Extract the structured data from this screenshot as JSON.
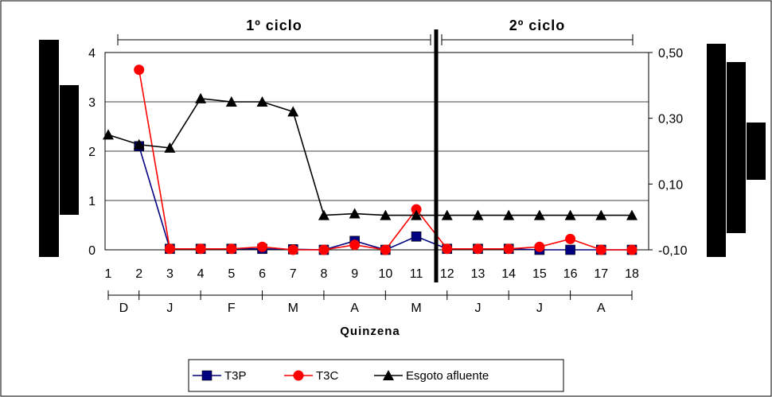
{
  "chart_data": {
    "type": "line",
    "xlabel": "Quinzena",
    "categories": [
      "1",
      "2",
      "3",
      "4",
      "5",
      "6",
      "7",
      "8",
      "9",
      "10",
      "11",
      "12",
      "13",
      "14",
      "15",
      "16",
      "17",
      "18"
    ],
    "y_left": {
      "ticks": [
        "0",
        "1",
        "2",
        "3",
        "4"
      ],
      "range": [
        0,
        4
      ]
    },
    "y_right": {
      "ticks": [
        "-0,10",
        "0,10",
        "0,30",
        "0,50"
      ],
      "range": [
        -0.1,
        0.5
      ]
    },
    "months": [
      {
        "label": "D",
        "from": 1,
        "to": 2
      },
      {
        "label": "J",
        "from": 2,
        "to": 4
      },
      {
        "label": "F",
        "from": 4,
        "to": 6
      },
      {
        "label": "M",
        "from": 6,
        "to": 8
      },
      {
        "label": "A",
        "from": 8,
        "to": 10
      },
      {
        "label": "M",
        "from": 10,
        "to": 12
      },
      {
        "label": "J",
        "from": 12,
        "to": 14
      },
      {
        "label": "J",
        "from": 14,
        "to": 16
      },
      {
        "label": "A",
        "from": 16,
        "to": 18
      }
    ],
    "cycles": [
      {
        "label": "1º ciclo",
        "from": 1,
        "to": 11
      },
      {
        "label": "2º ciclo",
        "from": 12,
        "to": 18
      }
    ],
    "series": [
      {
        "name": "T3P",
        "axis": "left",
        "color": "#000080",
        "marker": "square",
        "points": [
          [
            2,
            2.1
          ],
          [
            3,
            0.02
          ],
          [
            4,
            0.02
          ],
          [
            5,
            0.02
          ],
          [
            6,
            0.02
          ],
          [
            7,
            0.01
          ],
          [
            8,
            0.0
          ],
          [
            9,
            0.18
          ],
          [
            10,
            0.0
          ],
          [
            11,
            0.27
          ],
          [
            12,
            0.02
          ],
          [
            13,
            0.02
          ],
          [
            14,
            0.02
          ],
          [
            15,
            0.0
          ],
          [
            16,
            0.0
          ],
          [
            17,
            0.0
          ],
          [
            18,
            0.0
          ]
        ]
      },
      {
        "name": "T3C",
        "axis": "left",
        "color": "#ff0000",
        "marker": "circle",
        "points": [
          [
            2,
            3.65
          ],
          [
            3,
            0.02
          ],
          [
            4,
            0.02
          ],
          [
            5,
            0.02
          ],
          [
            6,
            0.06
          ],
          [
            7,
            0.0
          ],
          [
            8,
            0.0
          ],
          [
            9,
            0.1
          ],
          [
            10,
            0.0
          ],
          [
            11,
            0.82
          ],
          [
            12,
            0.02
          ],
          [
            13,
            0.02
          ],
          [
            14,
            0.02
          ],
          [
            15,
            0.06
          ],
          [
            16,
            0.22
          ],
          [
            17,
            0.0
          ],
          [
            18,
            0.0
          ]
        ]
      },
      {
        "name": "Esgoto afluente",
        "axis": "right",
        "color": "#000000",
        "marker": "triangle",
        "points": [
          [
            1,
            0.25
          ],
          [
            2,
            0.22
          ],
          [
            3,
            0.21
          ],
          [
            4,
            0.36
          ],
          [
            5,
            0.35
          ],
          [
            6,
            0.35
          ],
          [
            7,
            0.32
          ],
          [
            8,
            0.005
          ],
          [
            9,
            0.01
          ],
          [
            10,
            0.005
          ],
          [
            11,
            0.005
          ],
          [
            12,
            0.005
          ],
          [
            13,
            0.005
          ],
          [
            14,
            0.005
          ],
          [
            15,
            0.005
          ],
          [
            16,
            0.005
          ],
          [
            17,
            0.005
          ],
          [
            18,
            0.005
          ]
        ]
      }
    ],
    "grid": true,
    "legend_position": "bottom"
  }
}
